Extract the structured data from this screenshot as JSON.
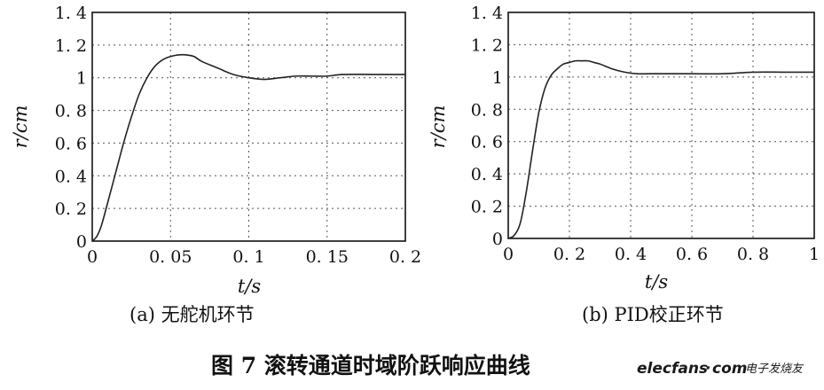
{
  "figure": {
    "title": "图 7  滚转通道时域阶跃响应曲线"
  },
  "watermark": {
    "brand": "elecfans",
    "dot": "·",
    "tld": "com",
    "cn": "电子发烧友"
  },
  "chart_data": [
    {
      "type": "line",
      "title": "",
      "caption": "(a) 无舵机环节",
      "xlabel": "t/s",
      "ylabel": "r/cm",
      "xlim": [
        0,
        0.2
      ],
      "ylim": [
        0,
        1.4
      ],
      "xticks": [
        0,
        0.05,
        0.1,
        0.15,
        0.2
      ],
      "xtick_labels": [
        "0",
        "0. 05",
        "0. 1",
        "0. 15",
        "0. 2"
      ],
      "yticks": [
        0,
        0.2,
        0.4,
        0.6,
        0.8,
        1.0,
        1.2,
        1.4
      ],
      "ytick_labels": [
        "0",
        "0. 2",
        "0. 4",
        "0. 6",
        "0. 8",
        "1",
        "1. 2",
        "1. 4"
      ],
      "grid": true,
      "series": [
        {
          "x": [
            0,
            0.003,
            0.006,
            0.01,
            0.015,
            0.02,
            0.025,
            0.03,
            0.035,
            0.04,
            0.045,
            0.05,
            0.055,
            0.06,
            0.065,
            0.07,
            0.08,
            0.09,
            0.1,
            0.11,
            0.12,
            0.13,
            0.14,
            0.15,
            0.16,
            0.18,
            0.2
          ],
          "y": [
            0,
            0.03,
            0.1,
            0.24,
            0.42,
            0.6,
            0.76,
            0.9,
            1.0,
            1.07,
            1.11,
            1.13,
            1.14,
            1.14,
            1.13,
            1.1,
            1.06,
            1.02,
            1.0,
            0.99,
            1.0,
            1.01,
            1.01,
            1.01,
            1.02,
            1.02,
            1.02
          ]
        }
      ]
    },
    {
      "type": "line",
      "title": "",
      "caption": "(b) PID校正环节",
      "xlabel": "t/s",
      "ylabel": "r/cm",
      "xlim": [
        0,
        1
      ],
      "ylim": [
        0,
        1.4
      ],
      "xticks": [
        0,
        0.2,
        0.4,
        0.6,
        0.8,
        1
      ],
      "xtick_labels": [
        "0",
        "0. 2",
        "0. 4",
        "0. 6",
        "0. 8",
        "1"
      ],
      "yticks": [
        0,
        0.2,
        0.4,
        0.6,
        0.8,
        1.0,
        1.2,
        1.4
      ],
      "ytick_labels": [
        "0",
        "0. 2",
        "0. 4",
        "0. 6",
        "0. 8",
        "1",
        "1. 2",
        "1. 4"
      ],
      "grid": true,
      "series": [
        {
          "x": [
            0,
            0.02,
            0.04,
            0.06,
            0.08,
            0.1,
            0.12,
            0.14,
            0.16,
            0.18,
            0.2,
            0.22,
            0.24,
            0.26,
            0.28,
            0.3,
            0.34,
            0.38,
            0.42,
            0.46,
            0.5,
            0.6,
            0.7,
            0.8,
            0.9,
            1.0
          ],
          "y": [
            0,
            0.02,
            0.1,
            0.3,
            0.55,
            0.78,
            0.93,
            1.01,
            1.05,
            1.08,
            1.09,
            1.1,
            1.1,
            1.1,
            1.09,
            1.08,
            1.05,
            1.03,
            1.02,
            1.02,
            1.02,
            1.02,
            1.02,
            1.03,
            1.03,
            1.03
          ]
        }
      ]
    }
  ]
}
